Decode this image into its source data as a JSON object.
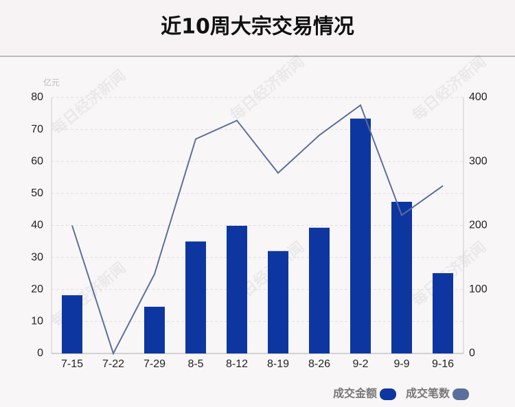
{
  "chart_data": {
    "type": "bar-line",
    "title": "近10周大宗交易情况",
    "y_unit": "亿元",
    "watermark": "每日经济新闻",
    "categories": [
      "7-15",
      "7-22",
      "7-29",
      "8-5",
      "8-12",
      "8-19",
      "8-26",
      "9-2",
      "9-9",
      "9-16"
    ],
    "series": [
      {
        "name": "成交金额",
        "type": "bar",
        "color": "#0d36a0",
        "values": [
          18.2,
          0,
          14.6,
          35.0,
          39.9,
          32.0,
          39.3,
          73.4,
          47.4,
          25.1
        ]
      },
      {
        "name": "成交笔数",
        "type": "line",
        "axis": "y2",
        "color": "#5a6f9c",
        "values": [
          200,
          0,
          124,
          335,
          364,
          282,
          341,
          388,
          216,
          262
        ]
      }
    ],
    "ylim": [
      0,
      80
    ],
    "yticks": [
      0,
      10,
      20,
      30,
      40,
      50,
      60,
      70,
      80
    ],
    "y2lim": [
      0,
      400
    ],
    "y2ticks": [
      0,
      100,
      200,
      300,
      400
    ],
    "grid": true,
    "legend": "bottom-right"
  }
}
